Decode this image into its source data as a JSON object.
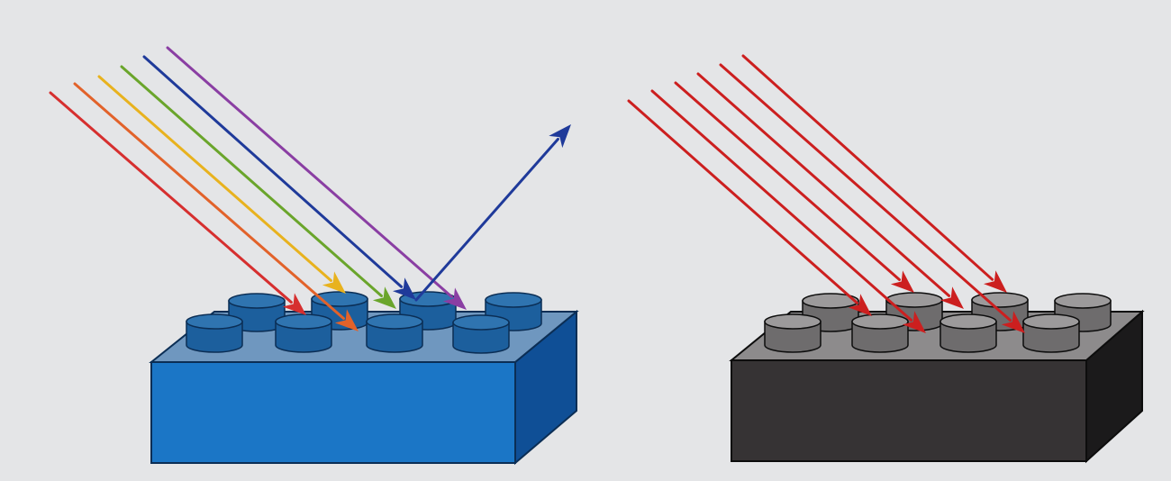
{
  "background_color": "#e4e5e7",
  "blue_brick": {
    "colors": {
      "top": "#6f97bf",
      "front": "#1b76c6",
      "side": "#0f4f96",
      "stud_top": "#2f74b0",
      "stud_side": "#1c5f9d",
      "edge": "#0b2e55"
    },
    "incoming_rays": [
      {
        "color": "#d62f2f"
      },
      {
        "color": "#e2622a"
      },
      {
        "color": "#e8b21e"
      },
      {
        "color": "#6aa52b"
      },
      {
        "color": "#1f3a9a"
      },
      {
        "color": "#8a3ea3"
      }
    ],
    "reflected_ray": {
      "color": "#1f3a9a"
    }
  },
  "black_brick": {
    "colors": {
      "top": "#8d8b8c",
      "front": "#363334",
      "side": "#1b1a1b",
      "stud_top": "#9c9a9b",
      "stud_side": "#6e6c6d",
      "edge": "#0d0d0d"
    },
    "incoming_rays": [
      {
        "color": "#cc1f1f"
      },
      {
        "color": "#cc1f1f"
      },
      {
        "color": "#cc1f1f"
      },
      {
        "color": "#cc1f1f"
      },
      {
        "color": "#cc1f1f"
      },
      {
        "color": "#cc1f1f"
      }
    ]
  }
}
